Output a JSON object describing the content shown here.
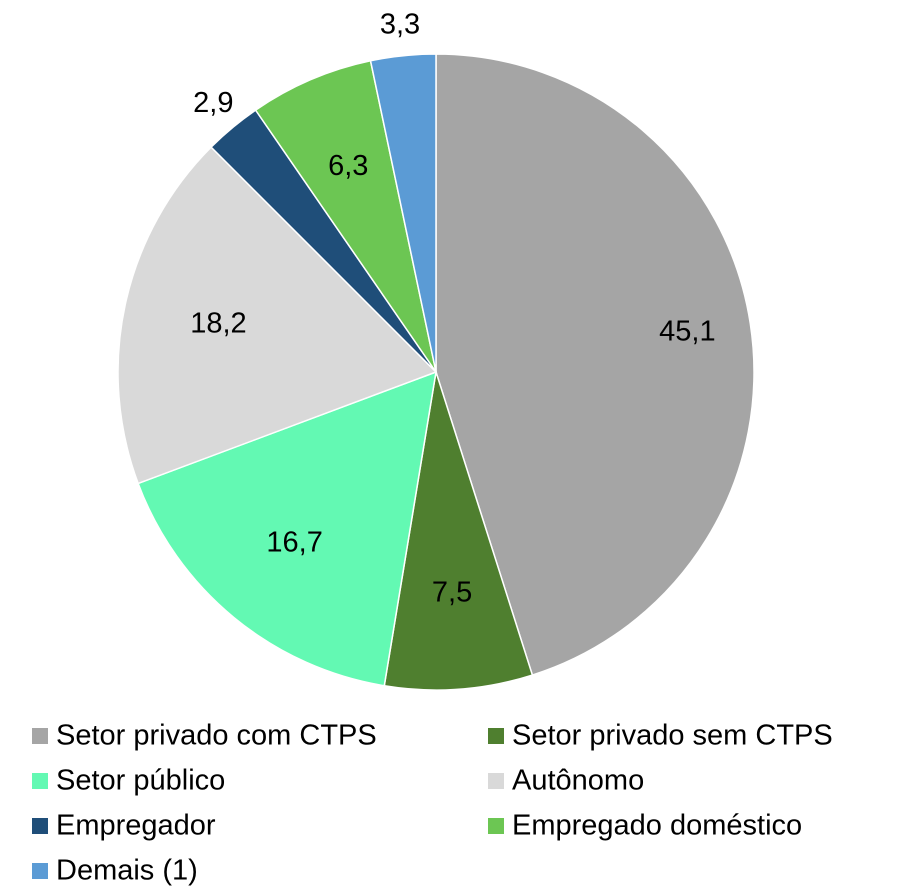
{
  "chart_data": {
    "type": "pie",
    "categories": [
      "Setor privado com CTPS",
      "Setor privado sem CTPS",
      "Setor público",
      "Autônomo",
      "Empregador",
      "Empregado doméstico",
      "Demais (1)"
    ],
    "values": [
      45.1,
      7.5,
      16.7,
      18.2,
      2.9,
      6.3,
      3.3
    ],
    "value_labels": [
      "45,1",
      "7,5",
      "16,7",
      "18,2",
      "2,9",
      "6,3",
      "3,3"
    ],
    "colors": [
      "#a5a5a5",
      "#4f7f2f",
      "#63f9b3",
      "#d9d9d9",
      "#1f4e79",
      "#6cc653",
      "#5b9bd5"
    ],
    "legend": "bottom"
  }
}
